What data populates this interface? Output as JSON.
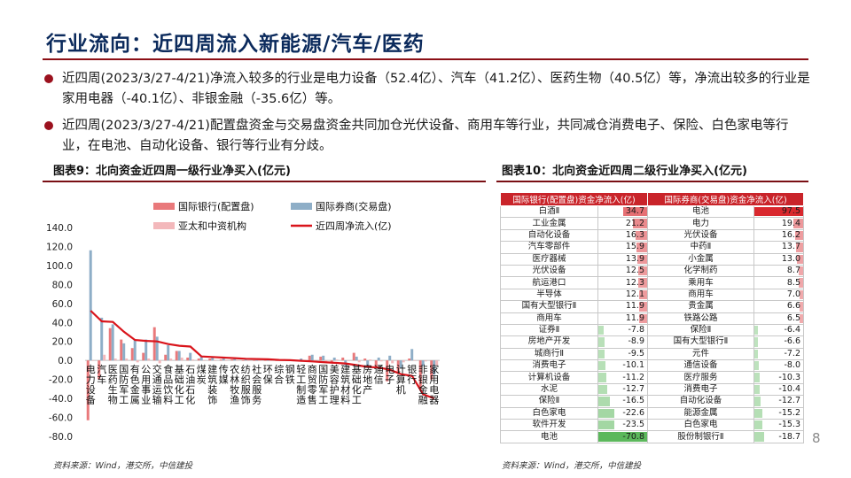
{
  "slide": {
    "title": "行业流向：近四周流入新能源/汽车/医药",
    "page_number": "8",
    "bullets": [
      "近四周(2023/3/27-4/21)净流入较多的行业是电力设备（52.4亿）、汽车（41.2亿）、医药生物（40.5亿）等，净流出较多的行业是家用电器（-40.1亿）、非银金融（-35.6亿）等。",
      "近四周(2023/3/27-4/21)配置盘资金与交易盘资金共同加仓光伏设备、商用车等行业，共同减仓消费电子、保险、白色家电等行业，在电池、自动化设备、银行等行业有分歧。"
    ],
    "figure_left_title": "图表9：北向资金近四周一级行业净买入(亿元)",
    "figure_right_title": "图表10：北向资金近四周二级行业净买入(亿元)",
    "source_left": "资料来源：Wind，港交所，中信建投",
    "source_right": "资料来源：Wind，港交所，中信建投"
  },
  "colors": {
    "accent_red": "#9b111e",
    "title_blue": "#0b2a5c",
    "series_bank": "#e9797b",
    "series_broker": "#8eaec7",
    "series_asia": "#f3b8bb",
    "series_total": "#d9141b",
    "table_header": "#c9242a",
    "bar_positive": "#d9282e",
    "bar_negative": "#5cb85c"
  },
  "chart_data": [
    {
      "type": "bar",
      "title": "图表9：北向资金近四周一级行业净买入(亿元)",
      "categories": [
        "电力设备",
        "汽车",
        "医药生物",
        "国防军工",
        "有色金属",
        "公用事业",
        "交通运输",
        "食品饮料",
        "基础化工",
        "石油石化",
        "煤炭",
        "建筑装饰",
        "传媒",
        "农林牧渔",
        "纺织服饰",
        "社会服务",
        "环保",
        "综合",
        "钢铁",
        "轻工制造",
        "商贸零售",
        "国防军工",
        "美容护理",
        "建筑材料",
        "基础化工",
        "房地产",
        "通信",
        "电子",
        "计算机",
        "银行",
        "非银金融",
        "家用电器"
      ],
      "category_labels": [
        "电力设备",
        "汽车",
        "医药生物",
        "国防军工",
        "有色金属",
        "公用事业",
        "交通运输",
        "食品饮料",
        "基础化工",
        "石油石化",
        "煤炭",
        "建筑装饰",
        "传媒",
        "农林牧渔",
        "纺织服饰",
        "社会服务",
        "环保",
        "综合",
        "钢铁",
        "轻工制造",
        "商贸零售",
        "国防军工",
        "美容护理",
        "建筑材料",
        "基础化工",
        "房地产",
        "通信",
        "电子",
        "计算机",
        "银行",
        "非银金融",
        "家用电器"
      ],
      "ylim": [
        -80,
        140
      ],
      "yticks": [
        "140.0",
        "120.0",
        "100.0",
        "80.0",
        "60.0",
        "40.0",
        "20.0",
        "0.0",
        "-20.0",
        "-40.0",
        "-60.0",
        "-80.0"
      ],
      "series": [
        {
          "name": "国际银行(配置盘)",
          "kind": "bar",
          "values": [
            -63,
            -20,
            34,
            22,
            13,
            8,
            35,
            6,
            10,
            3,
            2,
            2,
            1,
            1,
            0,
            0,
            0,
            0,
            1,
            0,
            5,
            4,
            -2,
            3,
            8,
            2,
            -8,
            -22,
            -12,
            2,
            -30,
            -20
          ]
        },
        {
          "name": "国际券商(交易盘)",
          "kind": "bar",
          "values": [
            116,
            45,
            38,
            18,
            22,
            22,
            25,
            16,
            10,
            8,
            4,
            3,
            2,
            2,
            1,
            0,
            0,
            1,
            0,
            2,
            6,
            5,
            3,
            -6,
            4,
            -6,
            3,
            5,
            -8,
            12,
            -6,
            -15
          ]
        },
        {
          "name": "亚太和中资机构",
          "kind": "bar",
          "values": [
            0,
            6,
            2,
            2,
            -2,
            2,
            -3,
            2,
            3,
            1,
            0,
            0,
            0,
            0,
            0,
            0,
            0,
            0,
            0,
            0,
            -1,
            -1,
            1,
            0,
            -2,
            1,
            -1,
            -3,
            -2,
            0,
            -1,
            -5
          ]
        },
        {
          "name": "近四周净流入(亿)",
          "kind": "line",
          "values": [
            52.4,
            41.2,
            40.5,
            30.2,
            21.5,
            20.6,
            20.0,
            17.2,
            15.5,
            14.6,
            4.2,
            3.6,
            3.0,
            2.4,
            1.8,
            1.5,
            1.2,
            0.5,
            0.3,
            -0.4,
            -1.0,
            -1.8,
            -2.5,
            -3.2,
            -5.0,
            -6.8,
            -7.5,
            -9.8,
            -14.5,
            -16.2,
            -35.6,
            -40.1
          ]
        }
      ]
    },
    {
      "type": "table",
      "title": "图表10：北向资金近四周二级行业净买入(亿元)",
      "columns": [
        "国际银行(配置盘)资金净流入(亿)",
        "国际券商(交易盘)资金净流入(亿)"
      ],
      "rows": [
        {
          "bank_name": "白酒Ⅱ",
          "bank_val": "34.7",
          "bank_num": 34.7,
          "broker_name": "电池",
          "broker_val": "97.5",
          "broker_num": 97.5
        },
        {
          "bank_name": "工业金属",
          "bank_val": "21.2",
          "bank_num": 21.2,
          "broker_name": "电力",
          "broker_val": "19.4",
          "broker_num": 19.4
        },
        {
          "bank_name": "自动化设备",
          "bank_val": "16.3",
          "bank_num": 16.3,
          "broker_name": "光伏设备",
          "broker_val": "16.2",
          "broker_num": 16.2
        },
        {
          "bank_name": "汽车零部件",
          "bank_val": "15.9",
          "bank_num": 15.9,
          "broker_name": "中药Ⅱ",
          "broker_val": "13.7",
          "broker_num": 13.7
        },
        {
          "bank_name": "医疗器械",
          "bank_val": "13.9",
          "bank_num": 13.9,
          "broker_name": "小金属",
          "broker_val": "13.0",
          "broker_num": 13.0
        },
        {
          "bank_name": "光伏设备",
          "bank_val": "12.5",
          "bank_num": 12.5,
          "broker_name": "化学制药",
          "broker_val": "8.7",
          "broker_num": 8.7
        },
        {
          "bank_name": "航运港口",
          "bank_val": "12.3",
          "bank_num": 12.3,
          "broker_name": "乘用车",
          "broker_val": "8.5",
          "broker_num": 8.5
        },
        {
          "bank_name": "半导体",
          "bank_val": "12.1",
          "bank_num": 12.1,
          "broker_name": "商用车",
          "broker_val": "7.0",
          "broker_num": 7.0
        },
        {
          "bank_name": "国有大型银行Ⅱ",
          "bank_val": "11.9",
          "bank_num": 11.9,
          "broker_name": "贵金属",
          "broker_val": "6.6",
          "broker_num": 6.6
        },
        {
          "bank_name": "商用车",
          "bank_val": "11.9",
          "bank_num": 11.9,
          "broker_name": "铁路公路",
          "broker_val": "6.5",
          "broker_num": 6.5
        },
        {
          "bank_name": "证券Ⅱ",
          "bank_val": "-7.8",
          "bank_num": -7.8,
          "broker_name": "保险Ⅱ",
          "broker_val": "-6.4",
          "broker_num": -6.4
        },
        {
          "bank_name": "房地产开发",
          "bank_val": "-8.9",
          "bank_num": -8.9,
          "broker_name": "国有大型银行Ⅱ",
          "broker_val": "-6.6",
          "broker_num": -6.6
        },
        {
          "bank_name": "城商行Ⅱ",
          "bank_val": "-9.5",
          "bank_num": -9.5,
          "broker_name": "元件",
          "broker_val": "-7.2",
          "broker_num": -7.2
        },
        {
          "bank_name": "消费电子",
          "bank_val": "-10.1",
          "bank_num": -10.1,
          "broker_name": "通信设备",
          "broker_val": "-8.0",
          "broker_num": -8.0
        },
        {
          "bank_name": "计算机设备",
          "bank_val": "-11.2",
          "bank_num": -11.2,
          "broker_name": "医疗服务",
          "broker_val": "-10.3",
          "broker_num": -10.3
        },
        {
          "bank_name": "水泥",
          "bank_val": "-12.7",
          "bank_num": -12.7,
          "broker_name": "消费电子",
          "broker_val": "-10.4",
          "broker_num": -10.4
        },
        {
          "bank_name": "保险Ⅱ",
          "bank_val": "-16.5",
          "bank_num": -16.5,
          "broker_name": "自动化设备",
          "broker_val": "-12.7",
          "broker_num": -12.7
        },
        {
          "bank_name": "白色家电",
          "bank_val": "-22.6",
          "bank_num": -22.6,
          "broker_name": "能源金属",
          "broker_val": "-15.2",
          "broker_num": -15.2
        },
        {
          "bank_name": "软件开发",
          "bank_val": "-23.5",
          "bank_num": -23.5,
          "broker_name": "白色家电",
          "broker_val": "-15.3",
          "broker_num": -15.3
        },
        {
          "bank_name": "电池",
          "bank_val": "-70.8",
          "bank_num": -70.8,
          "broker_name": "股份制银行Ⅱ",
          "broker_val": "-18.7",
          "broker_num": -18.7
        }
      ]
    }
  ]
}
